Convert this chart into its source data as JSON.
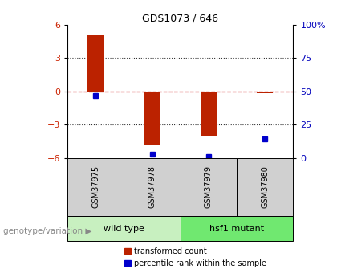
{
  "title": "GDS1073 / 646",
  "samples": [
    "GSM37975",
    "GSM37978",
    "GSM37979",
    "GSM37980"
  ],
  "red_bars": [
    5.1,
    -4.85,
    -4.1,
    -0.12
  ],
  "blue_dots_pct": [
    47,
    3,
    1,
    14
  ],
  "ylim": [
    -6,
    6
  ],
  "yticks_left": [
    -6,
    -3,
    0,
    3,
    6
  ],
  "groups": [
    {
      "label": "wild type",
      "cols": [
        0,
        1
      ],
      "color": "#c8f0c0"
    },
    {
      "label": "hsf1 mutant",
      "cols": [
        2,
        3
      ],
      "color": "#70e870"
    }
  ],
  "bar_color": "#bb2200",
  "dot_color": "#0000cc",
  "hline_color": "#cc0000",
  "dot_line_color": "#cc0000",
  "grid_color": "#333333",
  "tick_color_left": "#cc2200",
  "tick_color_right": "#0000bb",
  "legend_red_label": "transformed count",
  "legend_blue_label": "percentile rank within the sample",
  "genotype_label": "genotype/variation",
  "bar_width": 0.28,
  "sample_box_color": "#d0d0d0",
  "right_tick_labels": [
    "0",
    "25",
    "50",
    "75",
    "100%"
  ]
}
